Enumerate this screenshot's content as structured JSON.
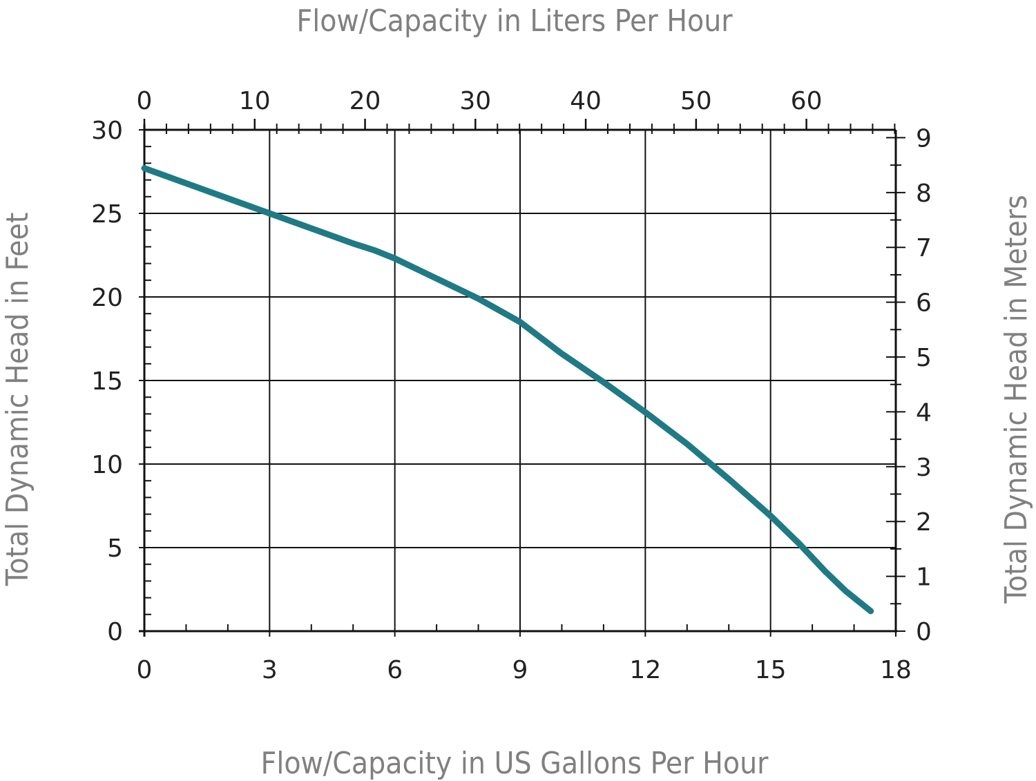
{
  "chart_data": {
    "type": "line",
    "top_axis_label": "Flow/Capacity in Liters Per Hour",
    "xlabel": "Flow/Capacity in US Gallons Per Hour",
    "ylabel": "Total Dynamic Head in Feet",
    "right_axis_label": "Total Dynamic Head in Meters",
    "x_ticks": [
      "0",
      "3",
      "6",
      "9",
      "12",
      "15",
      "18"
    ],
    "top_ticks": [
      "0",
      "10",
      "20",
      "30",
      "40",
      "50",
      "60"
    ],
    "y_ticks": [
      "0",
      "5",
      "10",
      "15",
      "20",
      "25",
      "30"
    ],
    "right_ticks": [
      "0",
      "1",
      "2",
      "3",
      "4",
      "5",
      "6",
      "7",
      "8",
      "9"
    ],
    "xlim": [
      0,
      18
    ],
    "ylim": [
      0,
      30
    ],
    "top_xlim": [
      0,
      68.1
    ],
    "right_ylim": [
      0,
      9.144
    ],
    "grid": true,
    "line_color": "#1f7a85",
    "series": [
      {
        "x": [
          0,
          1,
          2,
          3,
          4,
          5,
          5.5,
          6,
          7,
          8,
          9,
          10,
          11,
          12,
          13,
          14,
          15,
          15.7,
          16.3,
          16.8,
          17.4
        ],
        "y": [
          27.7,
          26.8,
          25.9,
          25.0,
          24.1,
          23.2,
          22.8,
          22.3,
          21.1,
          19.9,
          18.5,
          16.6,
          14.9,
          13.1,
          11.2,
          9.1,
          6.9,
          5.2,
          3.6,
          2.4,
          1.2
        ]
      }
    ]
  }
}
